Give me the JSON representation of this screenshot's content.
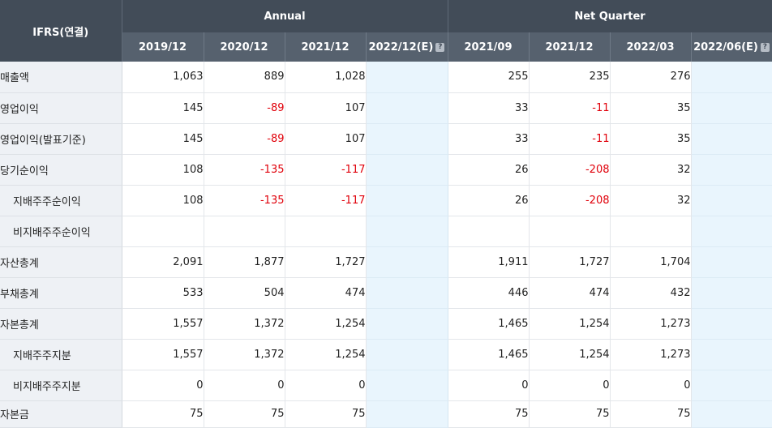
{
  "header": {
    "corner": "IFRS(연결)",
    "annual_label": "Annual",
    "quarter_label": "Net Quarter",
    "help_icon": "?",
    "annual_periods": [
      "2019/12",
      "2020/12",
      "2021/12",
      "2022/12(E)"
    ],
    "quarter_periods": [
      "2021/09",
      "2021/12",
      "2022/03",
      "2022/06(E)"
    ]
  },
  "colors": {
    "header_dark": "#424c58",
    "header_light": "#56616e",
    "negative": "#e0000a",
    "estimate_bg": "#e9f5fd",
    "label_bg": "#eef1f5"
  },
  "rows": [
    {
      "label": "매출액",
      "annual": [
        "1,063",
        "889",
        "1,028",
        ""
      ],
      "quarter": [
        "255",
        "235",
        "276",
        ""
      ]
    },
    {
      "label": "영업이익",
      "annual": [
        "145",
        "-89",
        "107",
        ""
      ],
      "quarter": [
        "33",
        "-11",
        "35",
        ""
      ]
    },
    {
      "label": "영업이익(발표기준)",
      "annual": [
        "145",
        "-89",
        "107",
        ""
      ],
      "quarter": [
        "33",
        "-11",
        "35",
        ""
      ]
    },
    {
      "label": "당기순이익",
      "annual": [
        "108",
        "-135",
        "-117",
        ""
      ],
      "quarter": [
        "26",
        "-208",
        "32",
        ""
      ]
    },
    {
      "label": "지배주주순이익",
      "annual": [
        "108",
        "-135",
        "-117",
        ""
      ],
      "quarter": [
        "26",
        "-208",
        "32",
        ""
      ]
    },
    {
      "label": "비지배주주순이익",
      "annual": [
        "",
        "",
        "",
        ""
      ],
      "quarter": [
        "",
        "",
        "",
        ""
      ]
    },
    {
      "label": "자산총계",
      "annual": [
        "2,091",
        "1,877",
        "1,727",
        ""
      ],
      "quarter": [
        "1,911",
        "1,727",
        "1,704",
        ""
      ]
    },
    {
      "label": "부채총계",
      "annual": [
        "533",
        "504",
        "474",
        ""
      ],
      "quarter": [
        "446",
        "474",
        "432",
        ""
      ]
    },
    {
      "label": "자본총계",
      "annual": [
        "1,557",
        "1,372",
        "1,254",
        ""
      ],
      "quarter": [
        "1,465",
        "1,254",
        "1,273",
        ""
      ]
    },
    {
      "label": "지배주주지분",
      "annual": [
        "1,557",
        "1,372",
        "1,254",
        ""
      ],
      "quarter": [
        "1,465",
        "1,254",
        "1,273",
        ""
      ]
    },
    {
      "label": "비지배주주지분",
      "annual": [
        "0",
        "0",
        "0",
        ""
      ],
      "quarter": [
        "0",
        "0",
        "0",
        ""
      ]
    },
    {
      "label": "자본금",
      "annual": [
        "75",
        "75",
        "75",
        ""
      ],
      "quarter": [
        "75",
        "75",
        "75",
        ""
      ]
    }
  ]
}
